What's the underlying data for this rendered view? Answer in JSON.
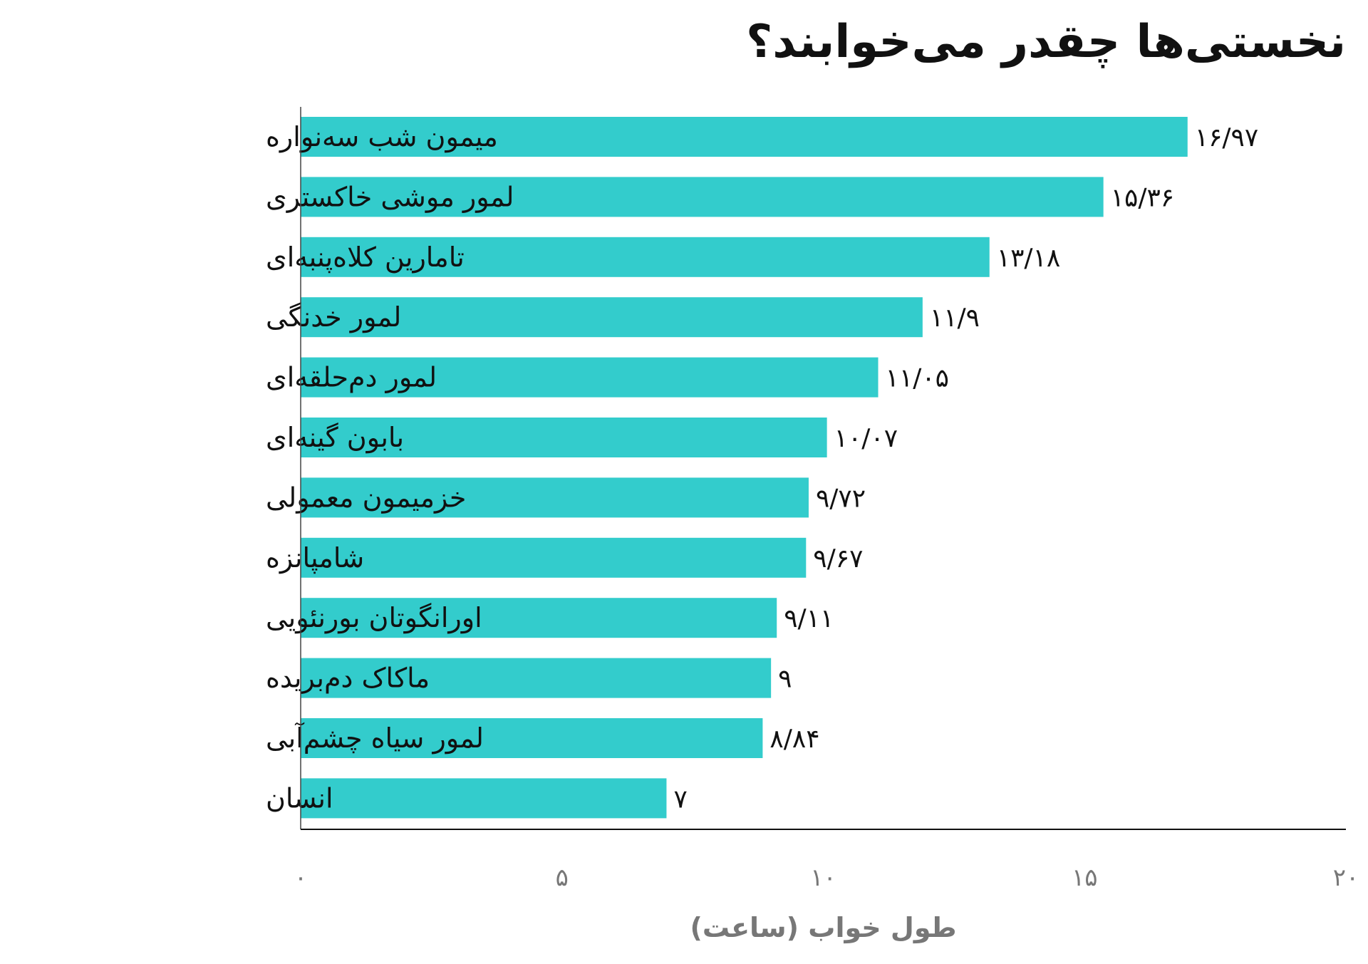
{
  "chart_data": {
    "type": "bar",
    "orientation": "horizontal",
    "title": "نخستی‌ها چقدر می‌خوابند؟",
    "xlabel": "طول خواب (ساعت)",
    "ylabel": "",
    "xlim": [
      0,
      20
    ],
    "xticks": [
      0,
      5,
      10,
      15,
      20
    ],
    "xtick_labels": [
      "۰",
      "۵",
      "۱۰",
      "۱۵",
      "۲۰"
    ],
    "grid": false,
    "bar_color": "#33CCCC",
    "categories": [
      "میمون شب سه‌نواره",
      "لمور موشی خاکستری",
      "تامارین کلاه‌پنبه‌ای",
      "لمور خدنگی",
      "لمور دم‌حلقه‌ای",
      "بابون گینه‌ای",
      "خزمیمون معمولی",
      "شامپانزه",
      "اورانگوتان بورنئویی",
      "ماکاک دم‌بریده",
      "لمور سیاه چشم‌آبی",
      "انسان"
    ],
    "values": [
      16.97,
      15.36,
      13.18,
      11.9,
      11.05,
      10.07,
      9.72,
      9.67,
      9.11,
      9,
      8.84,
      7
    ],
    "data_labels": [
      "۱۶/۹۷",
      "۱۵/۳۶",
      "۱۳/۱۸",
      "۱۱/۹",
      "۱۱/۰۵",
      "۱۰/۰۷",
      "۹/۷۲",
      "۹/۶۷",
      "۹/۱۱",
      "۹",
      "۸/۸۴",
      "۷"
    ]
  }
}
